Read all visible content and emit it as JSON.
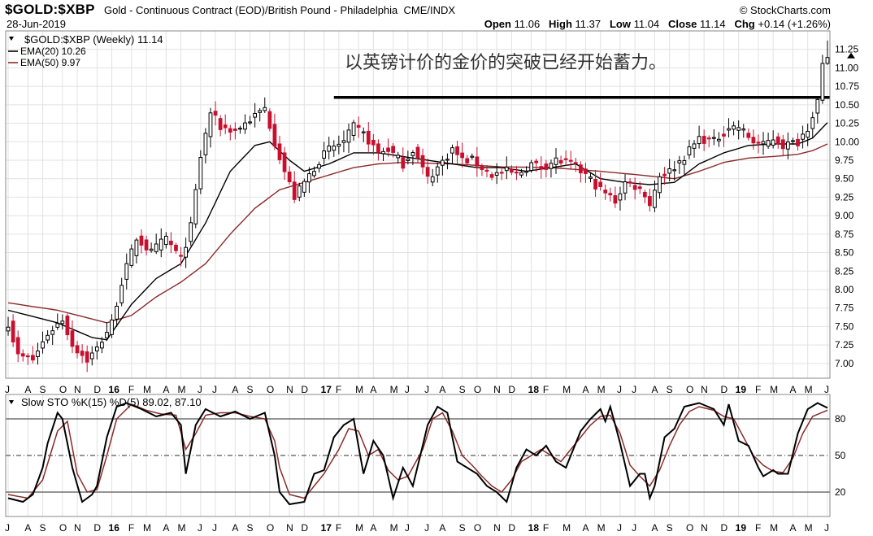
{
  "header": {
    "symbol": "$GOLD:$XBP",
    "description": "Gold - Continuous Contract (EOD)/British Pound - Philadelphia",
    "exchange": "CME/INDX",
    "brand": "© StockCharts.com",
    "date": "28-Jun-2019",
    "open_label": "Open",
    "open": "11.06",
    "high_label": "High",
    "high": "11.37",
    "low_label": "Low",
    "low": "11.04",
    "close_label": "Close",
    "close": "11.14",
    "chg_label": "Chg",
    "chg": "+0.14 (+1.26%)",
    "dropdown_icon": "triangle-down-icon"
  },
  "annotation": "以英镑计价的金价的突破已经开始蓄力。",
  "chart_data": [
    {
      "type": "candlestick",
      "title": "$GOLD:$XBP (Weekly) 11.14",
      "legend": [
        "EMA(20) 10.26",
        "EMA(50) 9.97"
      ],
      "colors": {
        "up": "#000000",
        "down": "#c8102e",
        "ema20": "#000000",
        "ema50": "#8b2a2a",
        "resistance": "#000000"
      },
      "ylim": [
        6.8,
        11.5
      ],
      "yticks": [
        7.0,
        7.25,
        7.5,
        7.75,
        8.0,
        8.25,
        8.5,
        8.75,
        9.0,
        9.25,
        9.5,
        9.75,
        10.0,
        10.25,
        10.5,
        10.75,
        11.0,
        11.25
      ],
      "ytick_labels": [
        "7.00",
        "7.25",
        "7.50",
        "7.75",
        "8.00",
        "8.25",
        "8.50",
        "8.75",
        "9.00",
        "9.25",
        "9.50",
        "9.75",
        "10.00",
        "10.25",
        "10.50",
        "10.75",
        "11.00",
        "11.25"
      ],
      "x_labels": [
        "J",
        "A",
        "S",
        "O",
        "N",
        "D",
        "16",
        "F",
        "M",
        "A",
        "M",
        "J",
        "J",
        "A",
        "S",
        "O",
        "N",
        "D",
        "17",
        "F",
        "M",
        "A",
        "M",
        "J",
        "J",
        "A",
        "S",
        "O",
        "N",
        "D",
        "18",
        "F",
        "M",
        "A",
        "M",
        "J",
        "J",
        "A",
        "S",
        "O",
        "N",
        "D",
        "19",
        "F",
        "M",
        "A",
        "M",
        "J"
      ],
      "resistance_level": 10.6,
      "close_anchors": [
        [
          0,
          7.55
        ],
        [
          2,
          7.1
        ],
        [
          5,
          7.05
        ],
        [
          8,
          7.4
        ],
        [
          11,
          7.6
        ],
        [
          13,
          7.25
        ],
        [
          16,
          7.05
        ],
        [
          18,
          7.2
        ],
        [
          21,
          7.55
        ],
        [
          23,
          8.1
        ],
        [
          26,
          8.7
        ],
        [
          29,
          8.5
        ],
        [
          32,
          8.7
        ],
        [
          35,
          8.4
        ],
        [
          37,
          8.85
        ],
        [
          39,
          9.8
        ],
        [
          41,
          10.4
        ],
        [
          43,
          10.2
        ],
        [
          46,
          10.15
        ],
        [
          49,
          10.3
        ],
        [
          52,
          10.45
        ],
        [
          54,
          10.0
        ],
        [
          56,
          9.6
        ],
        [
          58,
          9.25
        ],
        [
          61,
          9.55
        ],
        [
          63,
          9.75
        ],
        [
          65,
          9.9
        ],
        [
          68,
          10.0
        ],
        [
          70,
          10.2
        ],
        [
          72,
          10.1
        ],
        [
          75,
          9.85
        ],
        [
          77,
          9.9
        ],
        [
          80,
          9.7
        ],
        [
          82,
          9.9
        ],
        [
          85,
          9.5
        ],
        [
          87,
          9.65
        ],
        [
          90,
          9.9
        ],
        [
          92,
          9.75
        ],
        [
          94,
          9.75
        ],
        [
          96,
          9.65
        ],
        [
          98,
          9.55
        ],
        [
          101,
          9.6
        ],
        [
          103,
          9.55
        ],
        [
          106,
          9.7
        ],
        [
          108,
          9.65
        ],
        [
          111,
          9.75
        ],
        [
          114,
          9.7
        ],
        [
          117,
          9.55
        ],
        [
          120,
          9.35
        ],
        [
          123,
          9.2
        ],
        [
          125,
          9.45
        ],
        [
          127,
          9.4
        ],
        [
          129,
          9.3
        ],
        [
          130,
          9.15
        ],
        [
          132,
          9.55
        ],
        [
          134,
          9.6
        ],
        [
          137,
          9.8
        ],
        [
          140,
          10.05
        ],
        [
          143,
          10.0
        ],
        [
          146,
          10.2
        ],
        [
          148,
          10.2
        ],
        [
          151,
          10.0
        ],
        [
          153,
          9.95
        ],
        [
          155,
          10.05
        ],
        [
          157,
          9.95
        ],
        [
          160,
          10.0
        ],
        [
          162,
          10.2
        ],
        [
          164,
          10.55
        ],
        [
          165,
          11.0
        ],
        [
          166,
          11.14
        ]
      ],
      "ema20_anchors": [
        [
          0,
          7.72
        ],
        [
          10,
          7.55
        ],
        [
          17,
          7.35
        ],
        [
          20,
          7.32
        ],
        [
          25,
          7.8
        ],
        [
          30,
          8.15
        ],
        [
          35,
          8.35
        ],
        [
          40,
          8.9
        ],
        [
          45,
          9.6
        ],
        [
          50,
          9.95
        ],
        [
          53,
          10.0
        ],
        [
          57,
          9.75
        ],
        [
          60,
          9.6
        ],
        [
          65,
          9.7
        ],
        [
          70,
          9.85
        ],
        [
          75,
          9.85
        ],
        [
          80,
          9.8
        ],
        [
          85,
          9.75
        ],
        [
          90,
          9.7
        ],
        [
          95,
          9.65
        ],
        [
          100,
          9.65
        ],
        [
          105,
          9.6
        ],
        [
          110,
          9.65
        ],
        [
          115,
          9.7
        ],
        [
          120,
          9.5
        ],
        [
          125,
          9.45
        ],
        [
          130,
          9.42
        ],
        [
          135,
          9.45
        ],
        [
          140,
          9.7
        ],
        [
          145,
          9.85
        ],
        [
          150,
          9.95
        ],
        [
          155,
          9.97
        ],
        [
          160,
          9.97
        ],
        [
          163,
          10.05
        ],
        [
          166,
          10.26
        ]
      ],
      "ema50_anchors": [
        [
          0,
          7.82
        ],
        [
          10,
          7.72
        ],
        [
          20,
          7.55
        ],
        [
          25,
          7.65
        ],
        [
          30,
          7.9
        ],
        [
          35,
          8.1
        ],
        [
          40,
          8.35
        ],
        [
          45,
          8.75
        ],
        [
          50,
          9.1
        ],
        [
          55,
          9.35
        ],
        [
          60,
          9.45
        ],
        [
          65,
          9.55
        ],
        [
          70,
          9.65
        ],
        [
          75,
          9.7
        ],
        [
          80,
          9.72
        ],
        [
          90,
          9.7
        ],
        [
          100,
          9.66
        ],
        [
          110,
          9.65
        ],
        [
          120,
          9.6
        ],
        [
          128,
          9.55
        ],
        [
          135,
          9.5
        ],
        [
          140,
          9.6
        ],
        [
          145,
          9.72
        ],
        [
          150,
          9.78
        ],
        [
          155,
          9.8
        ],
        [
          160,
          9.83
        ],
        [
          163,
          9.88
        ],
        [
          166,
          9.97
        ]
      ]
    },
    {
      "type": "line",
      "title": "Slow STO %K(15) %D(5) 89.02, 87.10",
      "ylim": [
        0,
        100
      ],
      "yticks": [
        20,
        50,
        80
      ],
      "ytick_labels": [
        "20",
        "50",
        "80"
      ],
      "colors": {
        "k": "#000000",
        "d": "#8b2a2a",
        "level": "#555555"
      },
      "k_anchors": [
        [
          0,
          15
        ],
        [
          3,
          12
        ],
        [
          5,
          18
        ],
        [
          7,
          40
        ],
        [
          8,
          60
        ],
        [
          10,
          85
        ],
        [
          11,
          80
        ],
        [
          13,
          40
        ],
        [
          15,
          12
        ],
        [
          17,
          18
        ],
        [
          18,
          25
        ],
        [
          20,
          65
        ],
        [
          22,
          90
        ],
        [
          24,
          93
        ],
        [
          27,
          88
        ],
        [
          30,
          82
        ],
        [
          33,
          85
        ],
        [
          35,
          75
        ],
        [
          36,
          35
        ],
        [
          38,
          75
        ],
        [
          40,
          88
        ],
        [
          43,
          82
        ],
        [
          46,
          86
        ],
        [
          49,
          80
        ],
        [
          52,
          85
        ],
        [
          54,
          50
        ],
        [
          55,
          20
        ],
        [
          57,
          10
        ],
        [
          60,
          12
        ],
        [
          62,
          35
        ],
        [
          64,
          38
        ],
        [
          66,
          65
        ],
        [
          68,
          75
        ],
        [
          70,
          80
        ],
        [
          72,
          35
        ],
        [
          74,
          62
        ],
        [
          76,
          50
        ],
        [
          78,
          15
        ],
        [
          80,
          40
        ],
        [
          82,
          25
        ],
        [
          85,
          75
        ],
        [
          87,
          90
        ],
        [
          89,
          85
        ],
        [
          91,
          45
        ],
        [
          93,
          40
        ],
        [
          95,
          35
        ],
        [
          97,
          25
        ],
        [
          99,
          20
        ],
        [
          101,
          12
        ],
        [
          103,
          40
        ],
        [
          105,
          55
        ],
        [
          107,
          50
        ],
        [
          109,
          58
        ],
        [
          111,
          45
        ],
        [
          113,
          40
        ],
        [
          116,
          70
        ],
        [
          118,
          80
        ],
        [
          120,
          88
        ],
        [
          121,
          78
        ],
        [
          122,
          90
        ],
        [
          124,
          60
        ],
        [
          126,
          25
        ],
        [
          128,
          35
        ],
        [
          129,
          35
        ],
        [
          130,
          15
        ],
        [
          131,
          25
        ],
        [
          133,
          65
        ],
        [
          135,
          72
        ],
        [
          137,
          90
        ],
        [
          140,
          93
        ],
        [
          143,
          88
        ],
        [
          145,
          75
        ],
        [
          146,
          92
        ],
        [
          148,
          62
        ],
        [
          150,
          58
        ],
        [
          152,
          40
        ],
        [
          153,
          33
        ],
        [
          155,
          38
        ],
        [
          156,
          35
        ],
        [
          158,
          35
        ],
        [
          160,
          68
        ],
        [
          162,
          88
        ],
        [
          164,
          93
        ],
        [
          166,
          89
        ]
      ],
      "d_anchors": [
        [
          0,
          18
        ],
        [
          4,
          15
        ],
        [
          7,
          30
        ],
        [
          10,
          70
        ],
        [
          12,
          78
        ],
        [
          14,
          35
        ],
        [
          16,
          20
        ],
        [
          18,
          22
        ],
        [
          20,
          50
        ],
        [
          22,
          80
        ],
        [
          25,
          92
        ],
        [
          28,
          87
        ],
        [
          31,
          84
        ],
        [
          34,
          83
        ],
        [
          36,
          55
        ],
        [
          38,
          68
        ],
        [
          40,
          83
        ],
        [
          43,
          85
        ],
        [
          46,
          85
        ],
        [
          49,
          82
        ],
        [
          52,
          80
        ],
        [
          54,
          62
        ],
        [
          55,
          40
        ],
        [
          57,
          18
        ],
        [
          60,
          15
        ],
        [
          62,
          25
        ],
        [
          64,
          35
        ],
        [
          67,
          55
        ],
        [
          69,
          72
        ],
        [
          71,
          70
        ],
        [
          73,
          50
        ],
        [
          75,
          55
        ],
        [
          77,
          38
        ],
        [
          79,
          30
        ],
        [
          81,
          33
        ],
        [
          84,
          55
        ],
        [
          86,
          80
        ],
        [
          88,
          85
        ],
        [
          90,
          70
        ],
        [
          92,
          50
        ],
        [
          94,
          42
        ],
        [
          96,
          33
        ],
        [
          98,
          25
        ],
        [
          100,
          20
        ],
        [
          102,
          30
        ],
        [
          104,
          45
        ],
        [
          106,
          50
        ],
        [
          108,
          55
        ],
        [
          110,
          50
        ],
        [
          112,
          45
        ],
        [
          114,
          55
        ],
        [
          116,
          65
        ],
        [
          118,
          75
        ],
        [
          120,
          82
        ],
        [
          122,
          83
        ],
        [
          124,
          68
        ],
        [
          126,
          42
        ],
        [
          128,
          33
        ],
        [
          130,
          25
        ],
        [
          132,
          38
        ],
        [
          134,
          58
        ],
        [
          136,
          75
        ],
        [
          138,
          86
        ],
        [
          140,
          90
        ],
        [
          143,
          87
        ],
        [
          145,
          82
        ],
        [
          147,
          80
        ],
        [
          149,
          65
        ],
        [
          151,
          50
        ],
        [
          153,
          42
        ],
        [
          155,
          37
        ],
        [
          157,
          36
        ],
        [
          159,
          48
        ],
        [
          161,
          68
        ],
        [
          163,
          82
        ],
        [
          166,
          87.1
        ]
      ]
    }
  ]
}
